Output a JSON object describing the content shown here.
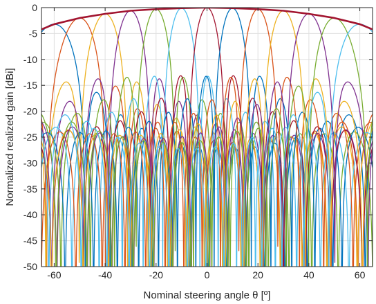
{
  "chart_data": {
    "type": "line",
    "title": "",
    "xlabel": "Nominal steering angle θ [º]",
    "ylabel": "Normalized realized gain [dBi]",
    "xlim": [
      -65,
      65
    ],
    "ylim": [
      -50,
      0
    ],
    "xticks": [
      -60,
      -40,
      -20,
      0,
      20,
      40,
      60
    ],
    "xtick_labels": [
      "-60",
      "-40",
      "-20",
      "0",
      "20",
      "40",
      "60"
    ],
    "yticks": [
      0,
      -5,
      -10,
      -15,
      -20,
      -25,
      -30,
      -35,
      -40,
      -45,
      -50
    ],
    "ytick_labels": [
      "0",
      "-5",
      "-10",
      "-15",
      "-20",
      "-25",
      "-30",
      "-35",
      "-40",
      "-45",
      "-50"
    ],
    "grid": true,
    "legend": "none",
    "envelope": {
      "color": "#a2142f",
      "x": [
        -65,
        -60,
        -50,
        -40,
        -30,
        -20,
        -10,
        0,
        10,
        20,
        30,
        40,
        50,
        60,
        65
      ],
      "y": [
        -4.2,
        -3.2,
        -2.0,
        -1.2,
        -0.6,
        -0.3,
        -0.1,
        0,
        -0.1,
        -0.3,
        -0.6,
        -1.2,
        -2.0,
        -3.2,
        -4.2
      ]
    },
    "beams": [
      {
        "steer": -60,
        "peak": -3.2,
        "color": "#0072bd"
      },
      {
        "steer": -50,
        "peak": -2.0,
        "color": "#d95319"
      },
      {
        "steer": -40,
        "peak": -1.2,
        "color": "#edb120"
      },
      {
        "steer": -30,
        "peak": -0.6,
        "color": "#7e2f8e"
      },
      {
        "steer": -20,
        "peak": -0.3,
        "color": "#77ac30"
      },
      {
        "steer": -10,
        "peak": -0.1,
        "color": "#4dbeee"
      },
      {
        "steer": 0,
        "peak": 0,
        "color": "#a2142f"
      },
      {
        "steer": 10,
        "peak": -0.1,
        "color": "#0072bd"
      },
      {
        "steer": 20,
        "peak": -0.3,
        "color": "#d95319"
      },
      {
        "steer": 30,
        "peak": -0.6,
        "color": "#edb120"
      },
      {
        "steer": 40,
        "peak": -1.2,
        "color": "#7e2f8e"
      },
      {
        "steer": 50,
        "peak": -2.0,
        "color": "#77ac30"
      },
      {
        "steer": 60,
        "peak": -3.2,
        "color": "#4dbeee"
      }
    ],
    "beam_count": 13
  }
}
